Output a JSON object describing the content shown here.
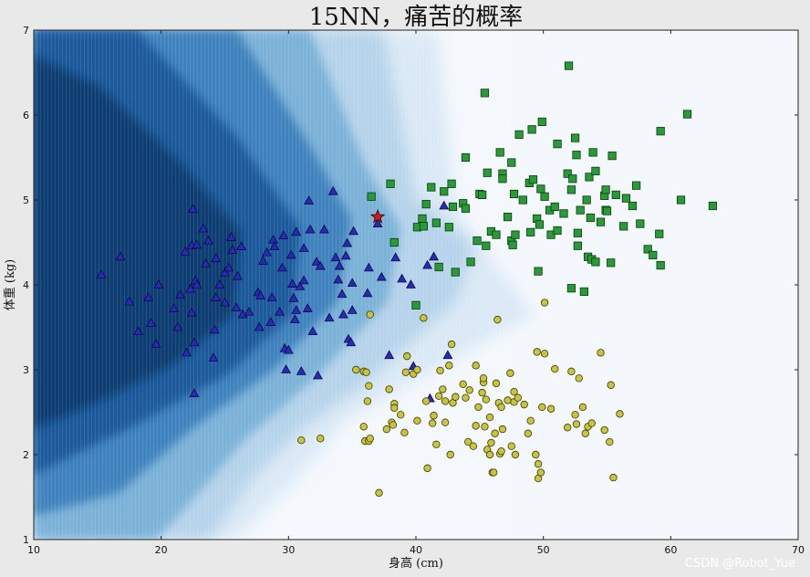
{
  "chart_data": {
    "type": "scatter",
    "title": "15NN，痛苦的概率",
    "xlabel": "身高 (cm)",
    "ylabel": "体重 (kg)",
    "xlim": [
      10,
      70
    ],
    "ylim": [
      1,
      7
    ],
    "xticks": [
      "10",
      "20",
      "30",
      "40",
      "50",
      "60",
      "70"
    ],
    "yticks": [
      "1",
      "2",
      "3",
      "4",
      "5",
      "6",
      "7"
    ],
    "background": "probability contour (Blues), dark = high probability",
    "colors": {
      "triangle": "#2a2ab8",
      "square": "#2a9a36",
      "circle": "#c9c43a",
      "star": "#d01818",
      "bg_dark": "#0b2a55",
      "bg_light": "#f4f8fd"
    },
    "query_point": {
      "x": 37.0,
      "y": 4.8,
      "marker": "star"
    },
    "series": [
      {
        "marker": "triangle",
        "points": [
          [
            15.3,
            4.12
          ],
          [
            16.8,
            4.33
          ],
          [
            17.5,
            3.8
          ],
          [
            18.2,
            3.45
          ],
          [
            19.0,
            3.85
          ],
          [
            19.2,
            3.55
          ],
          [
            19.6,
            3.3
          ],
          [
            19.8,
            4.0
          ],
          [
            21.0,
            3.72
          ],
          [
            21.3,
            3.5
          ],
          [
            21.5,
            3.88
          ],
          [
            21.9,
            4.39
          ],
          [
            22.0,
            3.2
          ],
          [
            22.3,
            3.95
          ],
          [
            22.4,
            3.67
          ],
          [
            22.4,
            4.46
          ],
          [
            22.5,
            4.89
          ],
          [
            22.6,
            3.32
          ],
          [
            22.6,
            2.72
          ],
          [
            22.7,
            4.05
          ],
          [
            22.8,
            4.47
          ],
          [
            22.8,
            4.0
          ],
          [
            23.3,
            4.66
          ],
          [
            23.5,
            4.25
          ],
          [
            23.7,
            4.52
          ],
          [
            24.1,
            3.14
          ],
          [
            24.2,
            3.47
          ],
          [
            24.3,
            3.85
          ],
          [
            24.3,
            4.31
          ],
          [
            24.6,
            4.0
          ],
          [
            25.0,
            3.79
          ],
          [
            25.0,
            4.14
          ],
          [
            25.3,
            4.2
          ],
          [
            25.5,
            4.56
          ],
          [
            25.6,
            4.41
          ],
          [
            25.9,
            3.73
          ],
          [
            26.0,
            4.1
          ],
          [
            26.3,
            4.45
          ],
          [
            26.4,
            3.65
          ],
          [
            26.9,
            3.68
          ],
          [
            27.6,
            3.91
          ],
          [
            27.7,
            3.5
          ],
          [
            27.8,
            3.87
          ],
          [
            28.0,
            4.28
          ],
          [
            28.3,
            4.38
          ],
          [
            28.6,
            3.56
          ],
          [
            28.7,
            3.85
          ],
          [
            28.8,
            4.53
          ],
          [
            28.9,
            4.45
          ],
          [
            29.3,
            3.68
          ],
          [
            29.5,
            4.2
          ],
          [
            29.6,
            4.58
          ],
          [
            29.7,
            3.25
          ],
          [
            29.8,
            3.0
          ],
          [
            30.0,
            3.23
          ],
          [
            30.2,
            4.35
          ],
          [
            30.3,
            4.01
          ],
          [
            30.4,
            3.84
          ],
          [
            30.5,
            3.59
          ],
          [
            30.6,
            4.62
          ],
          [
            30.6,
            3.7
          ],
          [
            30.9,
            3.98
          ],
          [
            31.0,
            2.98
          ],
          [
            31.2,
            4.05
          ],
          [
            31.2,
            4.43
          ],
          [
            31.5,
            3.72
          ],
          [
            31.6,
            4.99
          ],
          [
            31.7,
            4.65
          ],
          [
            31.9,
            3.45
          ],
          [
            32.2,
            4.27
          ],
          [
            32.3,
            2.93
          ],
          [
            32.5,
            4.22
          ],
          [
            32.8,
            4.65
          ],
          [
            33.2,
            3.61
          ],
          [
            33.5,
            5.1
          ],
          [
            33.7,
            4.32
          ],
          [
            33.9,
            4.06
          ],
          [
            34.0,
            4.22
          ],
          [
            34.2,
            3.89
          ],
          [
            34.3,
            3.65
          ],
          [
            34.5,
            4.34
          ],
          [
            34.6,
            4.49
          ],
          [
            34.7,
            3.36
          ],
          [
            34.9,
            3.32
          ],
          [
            35.0,
            4.02
          ],
          [
            35.0,
            3.7
          ],
          [
            35.1,
            4.63
          ],
          [
            36.2,
            3.9
          ],
          [
            36.3,
            4.2
          ],
          [
            37.0,
            4.72
          ],
          [
            37.3,
            4.09
          ],
          [
            37.9,
            3.17
          ],
          [
            38.4,
            4.32
          ],
          [
            38.9,
            4.07
          ],
          [
            39.6,
            4.0
          ],
          [
            39.8,
            3.04
          ],
          [
            40.9,
            4.23
          ],
          [
            41.1,
            2.66
          ],
          [
            41.4,
            4.33
          ],
          [
            42.2,
            4.93
          ],
          [
            42.5,
            3.17
          ]
        ]
      },
      {
        "marker": "square",
        "points": [
          [
            36.5,
            5.04
          ],
          [
            38.0,
            5.19
          ],
          [
            38.3,
            4.5
          ],
          [
            40.0,
            3.76
          ],
          [
            40.1,
            4.68
          ],
          [
            40.5,
            4.78
          ],
          [
            40.6,
            4.69
          ],
          [
            40.8,
            4.95
          ],
          [
            41.2,
            5.15
          ],
          [
            41.6,
            4.73
          ],
          [
            41.8,
            4.21
          ],
          [
            42.2,
            5.1
          ],
          [
            42.6,
            4.68
          ],
          [
            42.8,
            5.19
          ],
          [
            42.9,
            4.92
          ],
          [
            43.1,
            4.15
          ],
          [
            43.7,
            4.96
          ],
          [
            43.9,
            4.9
          ],
          [
            43.9,
            5.5
          ],
          [
            44.3,
            4.27
          ],
          [
            44.8,
            4.52
          ],
          [
            45.0,
            5.07
          ],
          [
            45.2,
            5.06
          ],
          [
            45.4,
            6.26
          ],
          [
            45.5,
            4.46
          ],
          [
            45.6,
            5.32
          ],
          [
            45.9,
            4.63
          ],
          [
            46.3,
            4.59
          ],
          [
            46.6,
            5.56
          ],
          [
            46.8,
            5.31
          ],
          [
            46.8,
            5.25
          ],
          [
            47.2,
            4.8
          ],
          [
            47.5,
            4.52
          ],
          [
            47.5,
            5.44
          ],
          [
            47.6,
            4.47
          ],
          [
            47.7,
            5.07
          ],
          [
            47.8,
            4.59
          ],
          [
            48.1,
            5.77
          ],
          [
            48.4,
            5.0
          ],
          [
            48.9,
            5.2
          ],
          [
            49.0,
            4.62
          ],
          [
            49.1,
            5.83
          ],
          [
            49.2,
            5.24
          ],
          [
            49.5,
            4.78
          ],
          [
            49.6,
            4.16
          ],
          [
            49.7,
            4.71
          ],
          [
            49.8,
            5.13
          ],
          [
            49.9,
            5.92
          ],
          [
            50.1,
            5.04
          ],
          [
            50.5,
            4.88
          ],
          [
            50.6,
            4.59
          ],
          [
            50.9,
            4.92
          ],
          [
            51.1,
            4.64
          ],
          [
            51.1,
            5.66
          ],
          [
            51.6,
            4.84
          ],
          [
            51.9,
            5.31
          ],
          [
            52.0,
            6.58
          ],
          [
            52.2,
            3.96
          ],
          [
            52.2,
            5.12
          ],
          [
            52.3,
            5.25
          ],
          [
            52.5,
            5.73
          ],
          [
            52.6,
            5.53
          ],
          [
            52.7,
            4.46
          ],
          [
            52.7,
            4.61
          ],
          [
            52.9,
            4.88
          ],
          [
            53.2,
            3.92
          ],
          [
            53.4,
            5.0
          ],
          [
            53.5,
            4.33
          ],
          [
            53.6,
            5.27
          ],
          [
            53.7,
            4.79
          ],
          [
            53.8,
            4.3
          ],
          [
            53.9,
            5.56
          ],
          [
            54.1,
            5.34
          ],
          [
            54.1,
            4.27
          ],
          [
            54.5,
            4.74
          ],
          [
            54.8,
            5.05
          ],
          [
            54.9,
            4.88
          ],
          [
            54.9,
            5.12
          ],
          [
            55.0,
            4.87
          ],
          [
            55.3,
            4.26
          ],
          [
            55.4,
            5.52
          ],
          [
            55.7,
            5.06
          ],
          [
            56.3,
            4.69
          ],
          [
            56.5,
            5.02
          ],
          [
            57.0,
            4.93
          ],
          [
            57.3,
            5.17
          ],
          [
            57.6,
            4.72
          ],
          [
            58.2,
            4.42
          ],
          [
            58.6,
            4.35
          ],
          [
            59.1,
            4.6
          ],
          [
            59.2,
            4.23
          ],
          [
            59.2,
            5.81
          ],
          [
            60.8,
            5.0
          ],
          [
            61.3,
            6.01
          ],
          [
            63.3,
            4.93
          ]
        ]
      },
      {
        "marker": "circle",
        "points": [
          [
            31.0,
            2.17
          ],
          [
            32.5,
            2.19
          ],
          [
            35.3,
            3.0
          ],
          [
            35.9,
            2.98
          ],
          [
            35.9,
            2.33
          ],
          [
            36.0,
            2.16
          ],
          [
            36.1,
            2.97
          ],
          [
            36.2,
            2.63
          ],
          [
            36.3,
            2.81
          ],
          [
            36.3,
            2.16
          ],
          [
            36.4,
            3.65
          ],
          [
            36.4,
            2.19
          ],
          [
            37.1,
            1.55
          ],
          [
            37.7,
            2.3
          ],
          [
            37.9,
            2.77
          ],
          [
            38.1,
            2.38
          ],
          [
            38.2,
            2.35
          ],
          [
            38.3,
            2.6
          ],
          [
            38.3,
            2.55
          ],
          [
            38.8,
            2.47
          ],
          [
            39.1,
            2.26
          ],
          [
            39.2,
            2.97
          ],
          [
            39.3,
            3.16
          ],
          [
            39.8,
            2.95
          ],
          [
            40.1,
            2.4
          ],
          [
            40.1,
            3.0
          ],
          [
            40.6,
            3.61
          ],
          [
            40.8,
            2.63
          ],
          [
            40.9,
            1.84
          ],
          [
            41.3,
            2.37
          ],
          [
            41.4,
            2.46
          ],
          [
            41.6,
            2.12
          ],
          [
            41.8,
            2.69
          ],
          [
            41.9,
            2.99
          ],
          [
            42.1,
            2.77
          ],
          [
            42.3,
            2.63
          ],
          [
            42.3,
            2.38
          ],
          [
            42.6,
            3.05
          ],
          [
            42.7,
            2.0
          ],
          [
            42.8,
            3.3
          ],
          [
            42.9,
            2.61
          ],
          [
            43.1,
            2.68
          ],
          [
            43.7,
            2.83
          ],
          [
            43.9,
            2.67
          ],
          [
            44.1,
            2.15
          ],
          [
            44.2,
            2.76
          ],
          [
            44.5,
            2.1
          ],
          [
            44.7,
            3.05
          ],
          [
            44.7,
            2.34
          ],
          [
            44.9,
            2.56
          ],
          [
            45.2,
            2.73
          ],
          [
            45.3,
            2.85
          ],
          [
            45.3,
            2.9
          ],
          [
            45.4,
            2.33
          ],
          [
            45.5,
            2.65
          ],
          [
            45.6,
            2.06
          ],
          [
            45.8,
            2.0
          ],
          [
            45.8,
            2.44
          ],
          [
            45.9,
            2.14
          ],
          [
            46.0,
            1.79
          ],
          [
            46.1,
            1.79
          ],
          [
            46.2,
            2.25
          ],
          [
            46.3,
            2.84
          ],
          [
            46.4,
            3.59
          ],
          [
            46.5,
            2.61
          ],
          [
            46.6,
            2.01
          ],
          [
            46.7,
            2.04
          ],
          [
            46.7,
            2.56
          ],
          [
            46.8,
            2.3
          ],
          [
            47.2,
            2.64
          ],
          [
            47.4,
            2.96
          ],
          [
            47.5,
            2.1
          ],
          [
            47.7,
            2.74
          ],
          [
            47.7,
            2.62
          ],
          [
            47.8,
            2.0
          ],
          [
            48.0,
            2.67
          ],
          [
            48.5,
            2.59
          ],
          [
            48.8,
            2.25
          ],
          [
            49.0,
            2.4
          ],
          [
            49.4,
            2.0
          ],
          [
            49.5,
            3.21
          ],
          [
            49.6,
            1.89
          ],
          [
            49.6,
            1.72
          ],
          [
            49.8,
            1.79
          ],
          [
            49.9,
            2.56
          ],
          [
            50.1,
            3.79
          ],
          [
            50.1,
            3.19
          ],
          [
            50.6,
            2.54
          ],
          [
            50.9,
            3.01
          ],
          [
            51.9,
            2.32
          ],
          [
            52.2,
            2.98
          ],
          [
            52.5,
            2.47
          ],
          [
            52.6,
            2.36
          ],
          [
            52.8,
            2.9
          ],
          [
            53.1,
            2.56
          ],
          [
            53.3,
            2.25
          ],
          [
            53.5,
            2.33
          ],
          [
            53.8,
            2.37
          ],
          [
            54.5,
            3.2
          ],
          [
            54.8,
            2.29
          ],
          [
            55.2,
            2.15
          ],
          [
            55.3,
            2.82
          ],
          [
            55.5,
            1.73
          ],
          [
            56.0,
            2.48
          ]
        ]
      }
    ]
  },
  "watermark": "CSDN @Robot_Yue"
}
